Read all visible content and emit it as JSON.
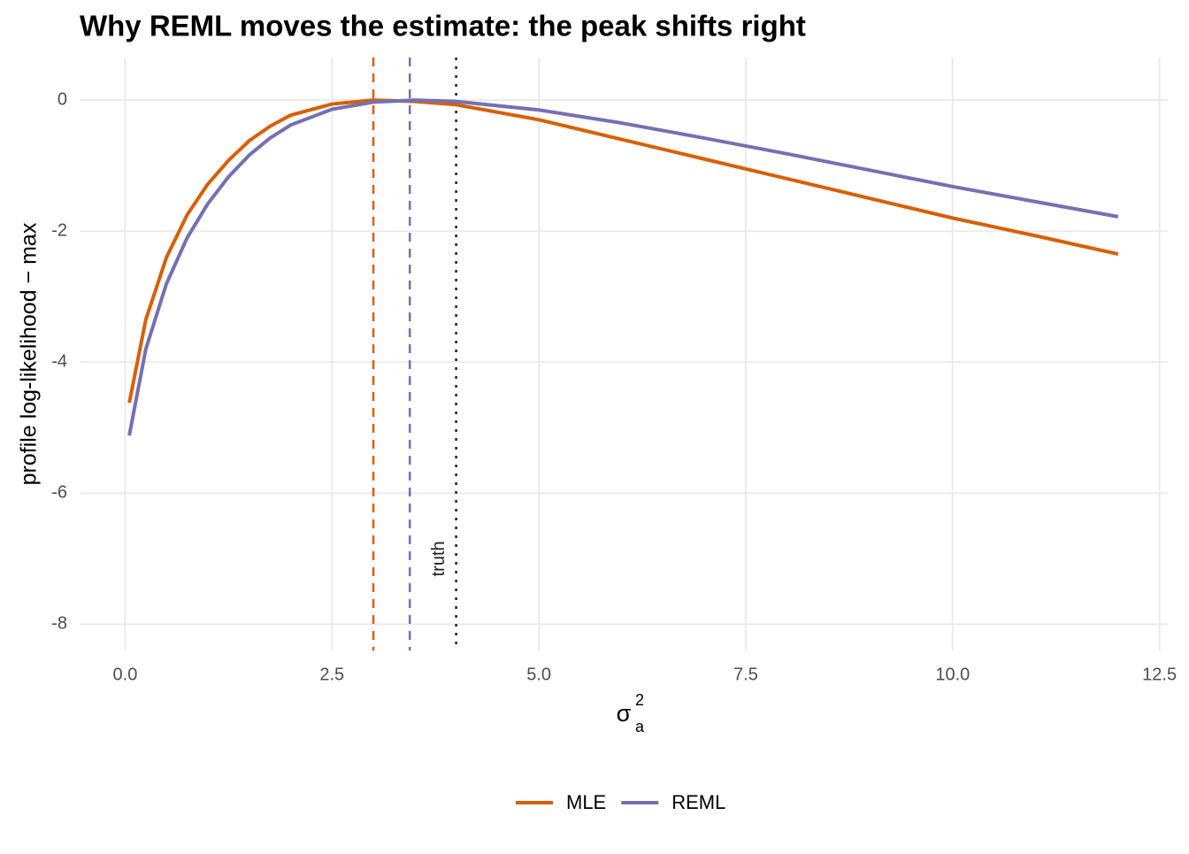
{
  "chart_data": {
    "type": "line",
    "title": "Why REML moves the estimate: the peak shifts right",
    "x_label": {
      "base": "σ",
      "sub": "a",
      "sup": "2"
    },
    "y_label": "profile log-likelihood − max",
    "x": [
      0.05,
      0.25,
      0.5,
      0.75,
      1,
      1.25,
      1.5,
      1.75,
      2,
      2.5,
      3,
      3.5,
      4,
      5,
      6,
      7,
      8,
      9,
      10,
      11,
      12
    ],
    "series": [
      {
        "name": "MLE",
        "color": "#d95f02",
        "values": [
          -4.62,
          -3.35,
          -2.4,
          -1.75,
          -1.28,
          -0.92,
          -0.62,
          -0.4,
          -0.23,
          -0.06,
          0,
          -0.02,
          -0.07,
          -0.3,
          -0.6,
          -0.9,
          -1.2,
          -1.5,
          -1.8,
          -2.07,
          -2.35
        ]
      },
      {
        "name": "REML",
        "color": "#7570b3",
        "values": [
          -5.12,
          -3.8,
          -2.8,
          -2.1,
          -1.58,
          -1.17,
          -0.84,
          -0.58,
          -0.38,
          -0.14,
          -0.03,
          0,
          -0.02,
          -0.15,
          -0.35,
          -0.58,
          -0.82,
          -1.07,
          -1.32,
          -1.55,
          -1.78
        ]
      }
    ],
    "reference_lines": [
      {
        "x": 3.0,
        "color": "#d95f02",
        "dash": "dashed"
      },
      {
        "x": 3.44,
        "color": "#7570b3",
        "dash": "dashed"
      },
      {
        "x": 4,
        "color": "#222222",
        "dash": "dotted"
      }
    ],
    "annotations": [
      {
        "text": "truth",
        "x": 3.8,
        "y": -7,
        "angle": -90
      }
    ],
    "xlim": [
      -0.55,
      12.6
    ],
    "ylim": [
      -8.4,
      0.65
    ],
    "xticks": [
      {
        "value": 0,
        "label": "0.0"
      },
      2.5,
      {
        "value": 5,
        "label": "5.0"
      },
      7.5,
      {
        "value": 10,
        "label": "10.0"
      },
      12.5
    ],
    "yticks": [
      0,
      -2,
      -4,
      -6,
      -8
    ],
    "grid": true,
    "legend": "bottom"
  }
}
